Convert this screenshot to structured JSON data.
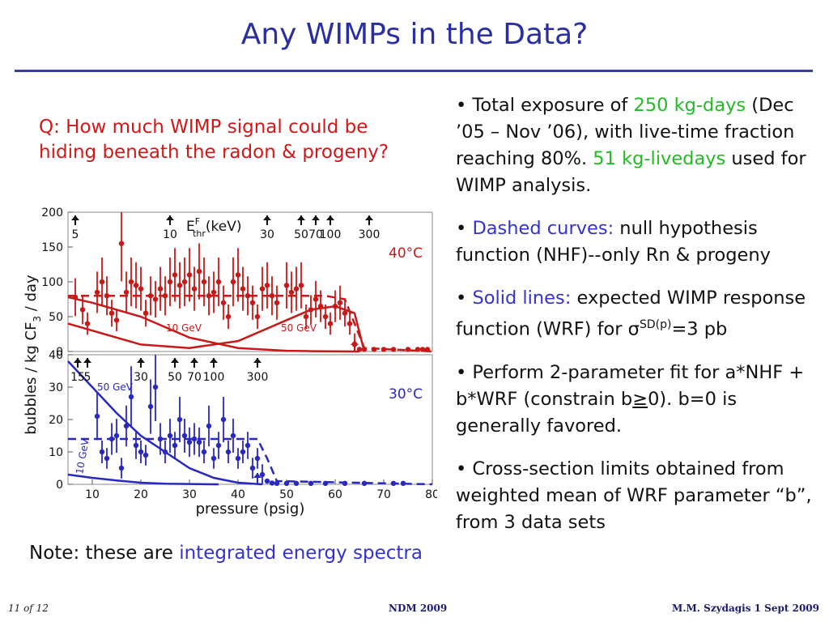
{
  "slide": {
    "title": "Any WIMPs in the Data?",
    "question": "Q: How much WIMP signal could be hiding beneath the radon & progeny?",
    "note_prefix": "Note: these are ",
    "note_highlight": "integrated energy spectra",
    "bullets": {
      "b1_pre": "• Total exposure of ",
      "b1_g1": "250 kg-days",
      "b1_mid": " (Dec ’05 – Nov ’06), with live-time fraction reaching 80%. ",
      "b1_g2": "51 kg-livedays",
      "b1_post": " used for WIMP analysis.",
      "b2_pre": "• ",
      "b2_blue": "Dashed curves:",
      "b2_post": " null hypothesis function (NHF)--only Rn & progeny",
      "b3_pre": "• ",
      "b3_blue": "Solid lines:",
      "b3_post": " expected WIMP response function (WRF) for σ",
      "b3_sup": "SD(p)",
      "b3_end": "=3 pb",
      "b4_pre": "• Perform 2-parameter fit for a*NHF + b*WRF (constrain b",
      "b4_ge": "≥",
      "b4_post": "0). b=0 is generally favored.",
      "b5": "• Cross-section limits obtained from weighted mean of WRF parameter “b”, from 3 data sets"
    },
    "footer": {
      "left": "11 of 12",
      "center": "NDM 2009",
      "right": "M.M. Szydagis 1 Sept 2009"
    },
    "colors": {
      "title": "#2a2fa0",
      "question": "#d01818",
      "green": "#22bb22",
      "blue": "#3333cc",
      "red_data": "#c81818",
      "blue_data": "#2828c0"
    }
  },
  "chart_data": [
    {
      "type": "scatter",
      "panel": "top",
      "temperature_label": "40°C",
      "ylim": [
        0,
        200
      ],
      "xlim": [
        5,
        80
      ],
      "yticks": [
        "200",
        "150",
        "100",
        "50",
        "0"
      ],
      "energy_axis_label_main": "E",
      "energy_axis_label_sup": "F",
      "energy_axis_label_sub": "thr",
      "energy_axis_label_unit": "(keV)",
      "energy_markers": [
        {
          "label": "5",
          "x": 6.5
        },
        {
          "label": "10",
          "x": 26
        },
        {
          "label": "30",
          "x": 46
        },
        {
          "label": "50",
          "x": 53
        },
        {
          "label": "70",
          "x": 56
        },
        {
          "label": "100",
          "x": 59
        },
        {
          "label": "300",
          "x": 67
        }
      ],
      "points": [
        [
          6.5,
          78
        ],
        [
          8,
          60
        ],
        [
          9,
          40
        ],
        [
          11,
          85
        ],
        [
          12,
          100
        ],
        [
          13,
          80
        ],
        [
          14,
          55
        ],
        [
          15,
          45
        ],
        [
          16,
          155
        ],
        [
          17,
          85
        ],
        [
          18,
          100
        ],
        [
          19,
          95
        ],
        [
          20,
          90
        ],
        [
          21,
          55
        ],
        [
          22,
          80
        ],
        [
          23,
          75
        ],
        [
          24,
          90
        ],
        [
          25,
          80
        ],
        [
          26,
          100
        ],
        [
          27,
          110
        ],
        [
          28,
          95
        ],
        [
          29,
          100
        ],
        [
          30,
          110
        ],
        [
          31,
          90
        ],
        [
          32,
          115
        ],
        [
          33,
          100
        ],
        [
          34,
          80
        ],
        [
          35,
          85
        ],
        [
          36,
          100
        ],
        [
          37,
          70
        ],
        [
          38,
          50
        ],
        [
          39,
          100
        ],
        [
          40,
          110
        ],
        [
          41,
          90
        ],
        [
          42,
          80
        ],
        [
          43,
          70
        ],
        [
          44,
          50
        ],
        [
          45,
          90
        ],
        [
          46,
          95
        ],
        [
          47,
          80
        ],
        [
          48,
          70
        ],
        [
          50,
          95
        ],
        [
          51,
          85
        ],
        [
          52,
          90
        ],
        [
          53,
          95
        ],
        [
          54,
          50
        ],
        [
          55,
          60
        ],
        [
          56,
          75
        ],
        [
          57,
          65
        ],
        [
          58,
          50
        ],
        [
          59,
          40
        ],
        [
          60,
          65
        ],
        [
          61,
          70
        ],
        [
          62,
          55
        ],
        [
          63,
          40
        ],
        [
          64,
          10
        ],
        [
          65,
          3
        ],
        [
          66,
          3
        ],
        [
          68,
          3
        ],
        [
          70,
          3
        ],
        [
          72,
          3
        ],
        [
          75,
          3
        ],
        [
          77,
          3
        ],
        [
          78,
          3
        ],
        [
          79,
          3
        ]
      ],
      "curves": [
        {
          "style": "dashed",
          "label": "NHF",
          "x": [
            5,
            10,
            20,
            30,
            40,
            50,
            58,
            62,
            64,
            66,
            80
          ],
          "y": [
            80,
            80,
            80,
            80,
            80,
            80,
            80,
            75,
            40,
            5,
            0
          ]
        },
        {
          "style": "solid",
          "label": "10 GeV",
          "x": [
            5,
            10,
            20,
            30,
            40,
            50,
            55,
            62,
            65
          ],
          "y": [
            78,
            70,
            50,
            20,
            5,
            1,
            0.5,
            0.2,
            0
          ]
        },
        {
          "style": "solid",
          "label": "50 GeV",
          "x": [
            5,
            10,
            20,
            30,
            40,
            50,
            55,
            60,
            64,
            66
          ],
          "y": [
            40,
            30,
            10,
            5,
            15,
            45,
            60,
            65,
            55,
            0
          ]
        }
      ],
      "curve_labels": [
        "10 GeV",
        "50 GeV"
      ],
      "threshold_arrow_x": 64
    },
    {
      "type": "scatter",
      "panel": "bottom",
      "temperature_label": "30°C",
      "ylim": [
        0,
        40
      ],
      "xlim": [
        5,
        80
      ],
      "yticks": [
        "40",
        "30",
        "20",
        "10",
        "0"
      ],
      "xticks": [
        "10",
        "20",
        "30",
        "40",
        "50",
        "60",
        "70",
        "80"
      ],
      "xlabel": "pressure (psig)",
      "shared_ylabel_main": "bubbles / kg CF",
      "shared_ylabel_sub": "3",
      "shared_ylabel_end": " / day",
      "energy_markers": [
        {
          "label": "15",
          "x": 7
        },
        {
          "label": "5",
          "x": 9
        },
        {
          "label": "30",
          "x": 20
        },
        {
          "label": "50",
          "x": 27
        },
        {
          "label": "70",
          "x": 31
        },
        {
          "label": "100",
          "x": 35
        },
        {
          "label": "300",
          "x": 44
        }
      ],
      "points": [
        [
          11,
          21
        ],
        [
          12,
          10
        ],
        [
          13,
          8
        ],
        [
          14,
          14
        ],
        [
          15,
          15
        ],
        [
          16,
          5
        ],
        [
          17,
          18
        ],
        [
          18,
          27
        ],
        [
          19,
          12
        ],
        [
          20,
          10
        ],
        [
          21,
          9
        ],
        [
          22,
          24
        ],
        [
          23,
          30
        ],
        [
          24,
          14
        ],
        [
          25,
          10
        ],
        [
          26,
          15
        ],
        [
          27,
          12
        ],
        [
          28,
          20
        ],
        [
          29,
          15
        ],
        [
          30,
          13
        ],
        [
          31,
          14
        ],
        [
          32,
          13
        ],
        [
          33,
          10
        ],
        [
          34,
          18
        ],
        [
          35,
          8
        ],
        [
          36,
          12
        ],
        [
          37,
          20
        ],
        [
          38,
          10
        ],
        [
          39,
          15
        ],
        [
          40,
          8
        ],
        [
          41,
          10
        ],
        [
          42,
          12
        ],
        [
          43,
          5
        ],
        [
          44,
          8
        ],
        [
          45,
          3
        ],
        [
          46,
          1
        ],
        [
          47,
          0.4
        ],
        [
          48,
          0.3
        ],
        [
          50,
          0.3
        ],
        [
          52,
          0.3
        ],
        [
          55,
          0.3
        ],
        [
          58,
          0.3
        ],
        [
          62,
          0.3
        ],
        [
          66,
          0.3
        ],
        [
          72,
          0.3
        ],
        [
          74,
          0.3
        ]
      ],
      "curves": [
        {
          "style": "dashed",
          "label": "NHF",
          "x": [
            5,
            20,
            35,
            44,
            46,
            48,
            80
          ],
          "y": [
            14,
            14,
            14,
            14,
            8,
            1,
            0
          ]
        },
        {
          "style": "solid",
          "label": "50 GeV",
          "x": [
            5,
            10,
            15,
            20,
            25,
            30,
            35,
            40,
            45
          ],
          "y": [
            38,
            30,
            22,
            15,
            10,
            5,
            2,
            0.5,
            0
          ]
        },
        {
          "style": "solid",
          "label": "10 GeV",
          "x": [
            5,
            10,
            15,
            20,
            25,
            30,
            36
          ],
          "y": [
            3,
            2,
            1.2,
            0.5,
            0.2,
            0.1,
            0
          ]
        }
      ],
      "curve_labels": [
        "50 GeV",
        "10 GeV"
      ],
      "threshold_arrow_x": 44
    }
  ]
}
